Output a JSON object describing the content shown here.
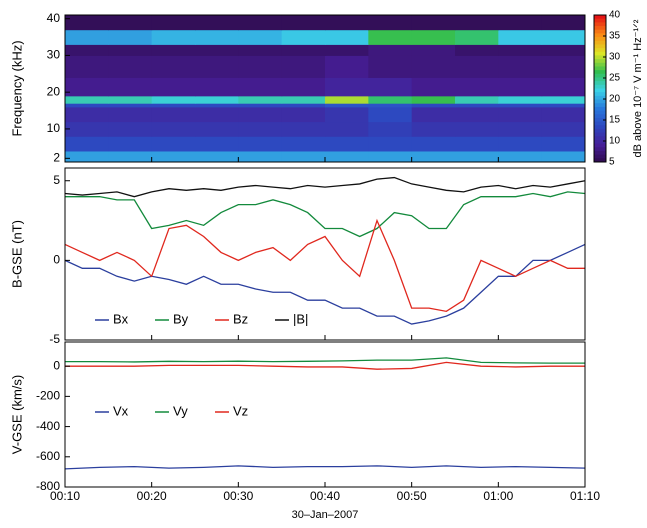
{
  "chart_data": [
    {
      "type": "heatmap",
      "ylabel": "Frequency (kHz)",
      "colorbar_label": "dB above 10⁻⁷ V m⁻¹ Hz⁻¹ᐟ²",
      "colormap": "jet",
      "xlim": [
        10,
        70
      ],
      "ylim": [
        1,
        41
      ],
      "yticks": [
        2,
        10,
        20,
        30,
        40
      ],
      "clim": [
        5,
        40
      ],
      "cticks": [
        5,
        10,
        15,
        20,
        25,
        30,
        35,
        40
      ],
      "xbins": [
        10,
        15,
        20,
        25,
        30,
        35,
        40,
        45,
        50,
        55,
        60,
        65,
        70
      ],
      "ybins": [
        1,
        4,
        8,
        12,
        16,
        17,
        19,
        24,
        30,
        33,
        37,
        41
      ],
      "z": [
        [
          20,
          20,
          20,
          20,
          20,
          20,
          20,
          20,
          20,
          20,
          20,
          20
        ],
        [
          14,
          14,
          14,
          14,
          14,
          14,
          14,
          14,
          14,
          14,
          14,
          14
        ],
        [
          12,
          12,
          12,
          12,
          12,
          12,
          12,
          13,
          12,
          12,
          12,
          12
        ],
        [
          11,
          11,
          11,
          11,
          11,
          11,
          12,
          14,
          11,
          11,
          11,
          11
        ],
        [
          14,
          14,
          14,
          14,
          14,
          14,
          15,
          15,
          14,
          14,
          14,
          14
        ],
        [
          24,
          24,
          23,
          23,
          24,
          24,
          30,
          26,
          27,
          24,
          23,
          23
        ],
        [
          9,
          9,
          9,
          9,
          9,
          9,
          10,
          10,
          9,
          9,
          9,
          9
        ],
        [
          8,
          8,
          8,
          8,
          8,
          8,
          9,
          8,
          8,
          8,
          8,
          8
        ],
        [
          7,
          7,
          7,
          7,
          7,
          7,
          7,
          8,
          8,
          7,
          7,
          7
        ],
        [
          20,
          20,
          21,
          21,
          21,
          22,
          22,
          27,
          27,
          26,
          22,
          22
        ],
        [
          6,
          6,
          6,
          6,
          6,
          6,
          6,
          6,
          6,
          6,
          6,
          6
        ]
      ]
    },
    {
      "type": "line",
      "ylabel": "B-GSE (nT)",
      "xlim": [
        10,
        70
      ],
      "ylim": [
        -5,
        5.8
      ],
      "yticks": [
        -5,
        0,
        5
      ],
      "x": [
        10,
        12,
        14,
        16,
        18,
        20,
        22,
        24,
        26,
        28,
        30,
        32,
        34,
        36,
        38,
        40,
        42,
        44,
        46,
        48,
        50,
        52,
        54,
        56,
        58,
        60,
        62,
        64,
        66,
        68,
        70
      ],
      "series": [
        {
          "name": "Bx",
          "color": "#2b3f9e",
          "values": [
            0,
            -0.5,
            -0.5,
            -1,
            -1.3,
            -1,
            -1.2,
            -1.5,
            -1,
            -1.5,
            -1.5,
            -1.8,
            -2,
            -2,
            -2.5,
            -2.5,
            -3,
            -3,
            -3.5,
            -3.5,
            -4,
            -3.8,
            -3.5,
            -3,
            -2,
            -1,
            -1,
            0,
            0,
            0.5,
            1
          ]
        },
        {
          "name": "By",
          "color": "#138a3c",
          "values": [
            4,
            4,
            4,
            3.8,
            3.8,
            2,
            2.2,
            2.5,
            2.2,
            3,
            3.5,
            3.5,
            3.8,
            3.5,
            3,
            2,
            2,
            1.5,
            2,
            3,
            2.8,
            2,
            2,
            3.5,
            4,
            4,
            4,
            4.2,
            4,
            4.3,
            4.2
          ]
        },
        {
          "name": "Bz",
          "color": "#e0281e",
          "values": [
            1,
            0.5,
            0,
            0.5,
            0,
            -1,
            2,
            2.2,
            1.5,
            0.5,
            0,
            0.5,
            0.8,
            0,
            1,
            1.5,
            0,
            -1,
            2.5,
            0,
            -3,
            -3,
            -3.2,
            -2.5,
            0,
            -0.5,
            -1,
            -0.5,
            0,
            -0.5,
            -0.5
          ]
        },
        {
          "name": "|B|",
          "color": "#111111",
          "values": [
            4.2,
            4.1,
            4.2,
            4.3,
            4,
            4.3,
            4.5,
            4.4,
            4.5,
            4.4,
            4.6,
            4.7,
            4.6,
            4.5,
            4.7,
            4.6,
            4.7,
            4.8,
            5.1,
            5.2,
            4.8,
            4.6,
            4.4,
            4.3,
            4.6,
            4.7,
            4.5,
            4.7,
            4.6,
            4.8,
            5
          ]
        }
      ]
    },
    {
      "type": "line",
      "ylabel": "V-GSE (km/s)",
      "xlabel": "30–Jan–2007",
      "xlim": [
        10,
        70
      ],
      "ylim": [
        -800,
        160
      ],
      "yticks": [
        -800,
        -600,
        -400,
        -200,
        0
      ],
      "xticks": [
        {
          "value": 10,
          "label": "00:10"
        },
        {
          "value": 20,
          "label": "00:20"
        },
        {
          "value": 30,
          "label": "00:30"
        },
        {
          "value": 40,
          "label": "00:40"
        },
        {
          "value": 50,
          "label": "00:50"
        },
        {
          "value": 60,
          "label": "01:00"
        },
        {
          "value": 70,
          "label": "01:10"
        }
      ],
      "x": [
        10,
        14,
        18,
        22,
        26,
        30,
        34,
        38,
        42,
        46,
        50,
        54,
        58,
        62,
        66,
        70
      ],
      "series": [
        {
          "name": "Vx",
          "color": "#2b3f9e",
          "values": [
            -680,
            -670,
            -665,
            -675,
            -670,
            -660,
            -670,
            -665,
            -665,
            -660,
            -670,
            -660,
            -670,
            -665,
            -670,
            -675
          ]
        },
        {
          "name": "Vy",
          "color": "#138a3c",
          "values": [
            30,
            30,
            28,
            32,
            30,
            33,
            30,
            32,
            35,
            40,
            40,
            55,
            25,
            22,
            20,
            20
          ]
        },
        {
          "name": "Vz",
          "color": "#e0281e",
          "values": [
            0,
            0,
            0,
            5,
            5,
            5,
            0,
            -5,
            -5,
            -20,
            -15,
            25,
            0,
            -5,
            0,
            0
          ]
        }
      ]
    }
  ]
}
